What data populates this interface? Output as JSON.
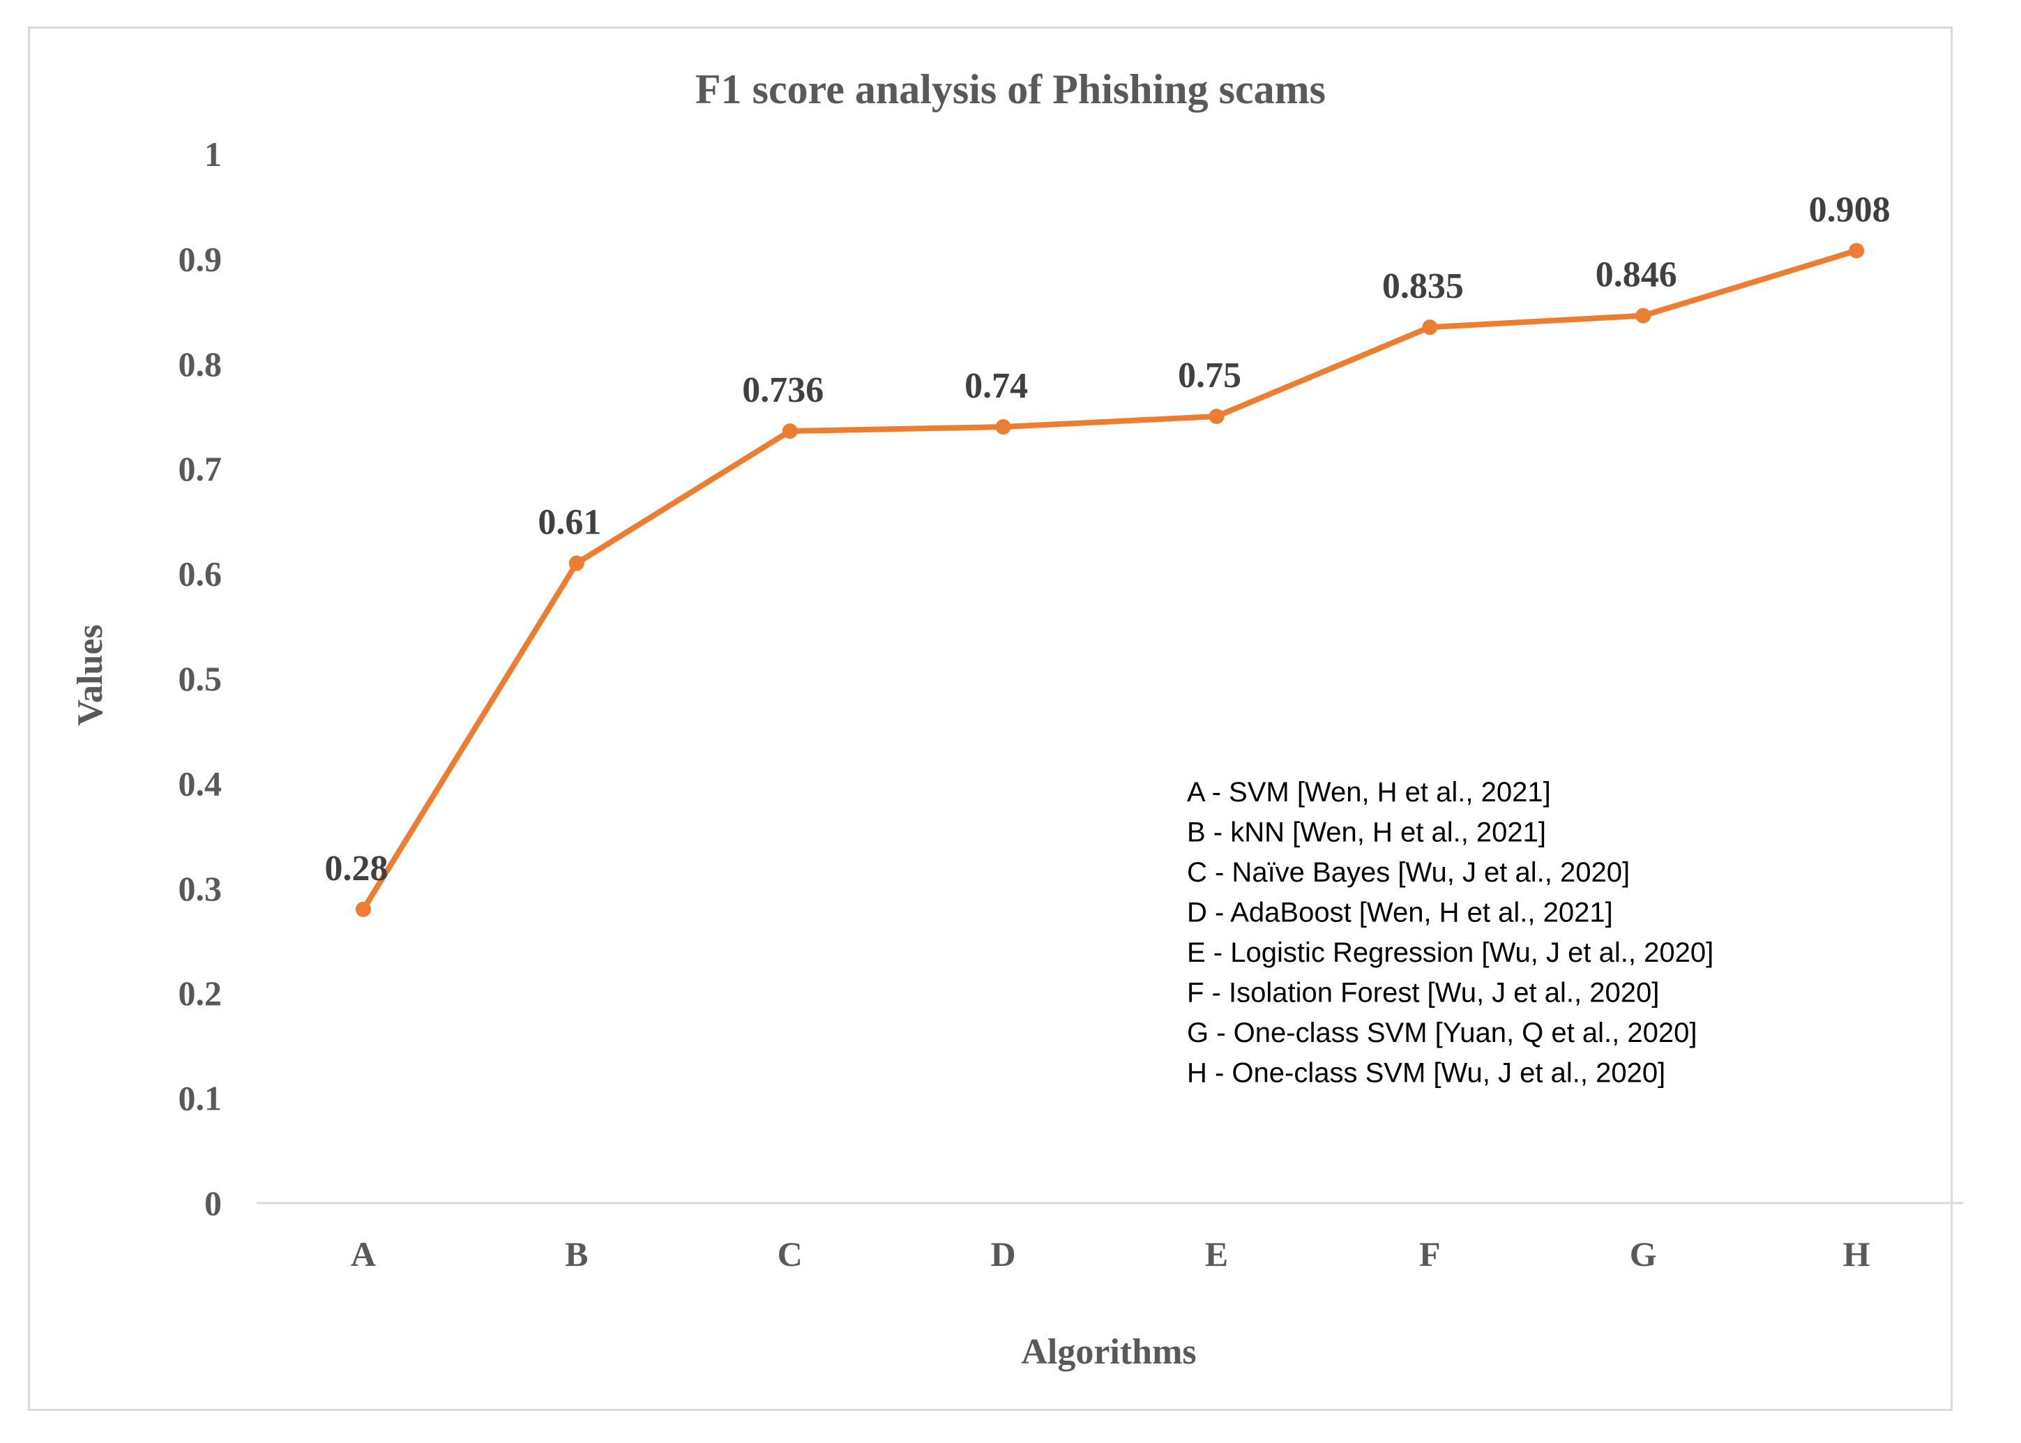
{
  "chart_data": {
    "type": "line",
    "title": "F1 score analysis of Phishing scams",
    "xlabel": "Algorithms",
    "ylabel": "Values",
    "categories": [
      "A",
      "B",
      "C",
      "D",
      "E",
      "F",
      "G",
      "H"
    ],
    "series": [
      {
        "values": [
          0.28,
          0.61,
          0.736,
          0.74,
          0.75,
          0.835,
          0.846,
          0.908
        ],
        "data_labels": [
          "0.28",
          "0.61",
          "0.736",
          "0.74",
          "0.75",
          "0.835",
          "0.846",
          "0.908"
        ],
        "color": "#ED7D31"
      }
    ],
    "ylim": [
      0,
      1
    ],
    "yticks": [
      0,
      0.1,
      0.2,
      0.3,
      0.4,
      0.5,
      0.6,
      0.7,
      0.8,
      0.9,
      1
    ],
    "ytick_labels": [
      "0",
      "0.1",
      "0.2",
      "0.3",
      "0.4",
      "0.5",
      "0.6",
      "0.7",
      "0.8",
      "0.9",
      "1"
    ],
    "grid": false,
    "legend_placement": "bottom-right",
    "legend_note": [
      "A - SVM [Wen, H et al., 2021]",
      "B - kNN [Wen, H et al., 2021]",
      "C - Naïve Bayes [Wu, J et al., 2020]",
      "D - AdaBoost [Wen, H et al., 2021]",
      "E - Logistic Regression [Wu, J et al., 2020]",
      "F - Isolation Forest [Wu, J et al., 2020]",
      "G - One-class SVM [Yuan, Q et al., 2020]",
      "H - One-class SVM [Wu, J et al., 2020]"
    ],
    "colors": {
      "line": "#ED7D31",
      "axis": "#d9d9d9",
      "text": "#595959"
    }
  }
}
